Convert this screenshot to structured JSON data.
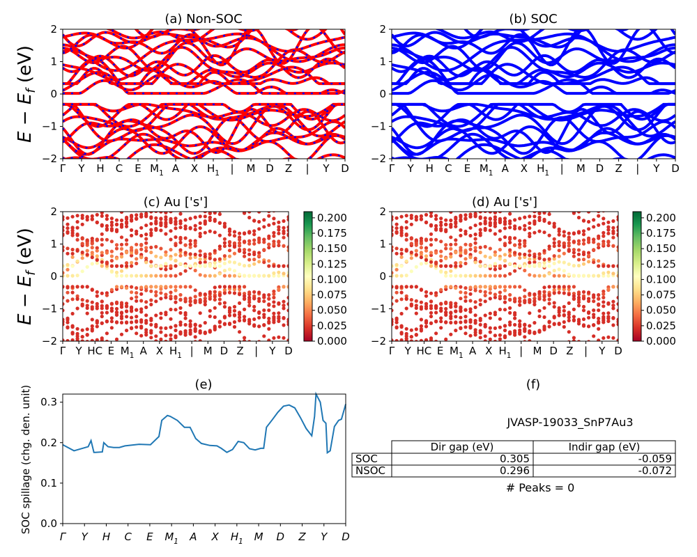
{
  "panels": {
    "a": {
      "title": "(a) Non-SOC",
      "ylabel": "E − E_f (eV)"
    },
    "b": {
      "title": "(b) SOC"
    },
    "c": {
      "title": "(c)  Au ['s']",
      "ylabel": "E − E_f (eV)"
    },
    "d": {
      "title": "(d) Au ['s']"
    },
    "e": {
      "title": "(e)",
      "ylabel": "SOC spillage (chg. den. unit)"
    },
    "f": {
      "title": "(f)"
    }
  },
  "kpath": {
    "ylim": [
      -2,
      2
    ],
    "yticks": [
      "2",
      "1",
      "0",
      "−1",
      "−2"
    ],
    "labels_ab": [
      "Γ",
      "Y",
      "H",
      "C",
      "E",
      "M1",
      "A",
      "X",
      "H1",
      "|",
      "M",
      "D",
      "Z",
      "|",
      "Y",
      "D"
    ],
    "labels_cd": [
      "Γ",
      "Y",
      "HC",
      "E",
      "M1",
      "A",
      "X",
      "H1",
      "|",
      "M",
      "D",
      "Z",
      "|",
      "Y",
      "D"
    ]
  },
  "colorbar": {
    "ticks": [
      "0.200",
      "0.175",
      "0.150",
      "0.125",
      "0.100",
      "0.075",
      "0.050",
      "0.025",
      "0.000"
    ],
    "colors": [
      "#a50026",
      "#d73027",
      "#f46d43",
      "#fdae61",
      "#fee08b",
      "#ffffbf",
      "#d9ef8b",
      "#a6d96a",
      "#66bd63",
      "#1a9850",
      "#006837"
    ]
  },
  "colors": {
    "nonsoc_a": "#ff0000",
    "nonsoc_b": "#0000ff",
    "soc": "#0000ff",
    "spillage": "#1f77b4"
  },
  "chart_data": [
    {
      "panel": "a",
      "type": "line",
      "title": "(a) Non-SOC",
      "ylim": [
        -2,
        2
      ]
    },
    {
      "panel": "b",
      "type": "line",
      "title": "(b) SOC",
      "ylim": [
        -2,
        2
      ]
    },
    {
      "panel": "c",
      "type": "scatter",
      "title": "(c)  Au ['s']",
      "ylim": [
        -2,
        2
      ],
      "clim": [
        0,
        0.21
      ]
    },
    {
      "panel": "d",
      "type": "scatter",
      "title": "(d) Au ['s']",
      "ylim": [
        -2,
        2
      ],
      "clim": [
        0,
        0.21
      ]
    },
    {
      "panel": "e",
      "type": "line",
      "title": "(e)",
      "ylabel": "SOC spillage (chg. den. unit)",
      "ylim": [
        0,
        0.32
      ],
      "yticks": [
        "0.0",
        "0.1",
        "0.2",
        "0.3"
      ],
      "xticks": [
        "Γ",
        "Y",
        "H",
        "C",
        "E",
        "M1",
        "A",
        "X",
        "H1",
        "M",
        "D",
        "Z",
        "Y",
        "D"
      ],
      "x": [
        0.0,
        0.04,
        0.09,
        0.1,
        0.11,
        0.115,
        0.14,
        0.145,
        0.16,
        0.18,
        0.2,
        0.22,
        0.27,
        0.31,
        0.34,
        0.35,
        0.37,
        0.38,
        0.405,
        0.43,
        0.45,
        0.47,
        0.49,
        0.52,
        0.545,
        0.56,
        0.58,
        0.6,
        0.62,
        0.64,
        0.66,
        0.68,
        0.7,
        0.71,
        0.72,
        0.74,
        0.76,
        0.78,
        0.8,
        0.82,
        0.84,
        0.86,
        0.88,
        0.89,
        0.895,
        0.91,
        0.92,
        0.93,
        0.935,
        0.945,
        0.96,
        0.975,
        0.985,
        1.0
      ],
      "y": [
        0.195,
        0.18,
        0.19,
        0.205,
        0.176,
        0.176,
        0.177,
        0.2,
        0.19,
        0.188,
        0.188,
        0.192,
        0.196,
        0.195,
        0.215,
        0.255,
        0.267,
        0.265,
        0.255,
        0.238,
        0.238,
        0.21,
        0.198,
        0.193,
        0.192,
        0.186,
        0.176,
        0.183,
        0.203,
        0.2,
        0.185,
        0.182,
        0.186,
        0.186,
        0.238,
        0.256,
        0.275,
        0.29,
        0.293,
        0.286,
        0.262,
        0.235,
        0.217,
        0.265,
        0.32,
        0.3,
        0.255,
        0.248,
        0.175,
        0.18,
        0.24,
        0.255,
        0.258,
        0.295
      ]
    },
    {
      "panel": "f",
      "type": "table",
      "title": "(f)",
      "caption": "JVASP-19033_SnP7Au3",
      "columns": [
        "Dir gap (eV)",
        "Indir gap (eV)"
      ],
      "rows": [
        {
          "label": "SOC",
          "dir": "0.305",
          "indir": "-0.059"
        },
        {
          "label": "NSOC",
          "dir": "0.296",
          "indir": "-0.072"
        }
      ],
      "footer": "# Peaks = 0"
    }
  ]
}
